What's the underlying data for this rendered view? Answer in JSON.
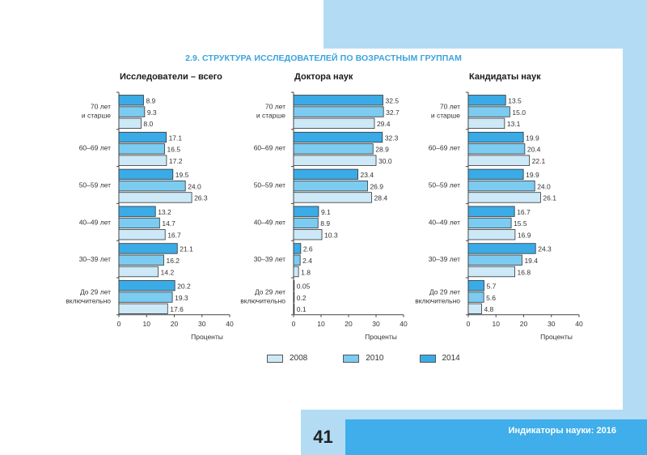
{
  "page": {
    "title": "2.9. СТРУКТУРА ИССЛЕДОВАТЕЛЕЙ ПО ВОЗРАСТНЫМ ГРУППАМ",
    "page_number": "41",
    "footer_text": "Индикаторы науки: 2016",
    "colors": {
      "title": "#3aa3de",
      "s2008": "#cde9f8",
      "s2010": "#7ccbf1",
      "s2014": "#3aabe6",
      "accent_light": "#b3dcf4",
      "accent_dark": "#40aeea"
    }
  },
  "legend": [
    {
      "name": "2008",
      "color": "#cde9f8"
    },
    {
      "name": "2010",
      "color": "#7ccbf1"
    },
    {
      "name": "2014",
      "color": "#3aabe6"
    }
  ],
  "chart_data": [
    {
      "type": "bar",
      "orientation": "horizontal",
      "title": "Исследователи – всего",
      "xlabel": "Проценты",
      "ylabel": "",
      "xlim": [
        0,
        40
      ],
      "xticks": [
        0,
        10,
        20,
        30,
        40
      ],
      "categories": [
        "70 лет\nи старше",
        "60–69 лет",
        "50–59 лет",
        "40–49 лет",
        "30–39 лет",
        "До 29 лет\nвключительно"
      ],
      "series": [
        {
          "name": "2014",
          "values": [
            8.9,
            17.1,
            19.5,
            13.2,
            21.1,
            20.2
          ],
          "labels": [
            "8.9",
            "17.1",
            "19.5",
            "13.2",
            "21.1",
            "20.2"
          ]
        },
        {
          "name": "2010",
          "values": [
            9.3,
            16.5,
            24.0,
            14.7,
            16.2,
            19.3
          ],
          "labels": [
            "9.3",
            "16.5",
            "24.0",
            "14.7",
            "16.2",
            "19.3"
          ]
        },
        {
          "name": "2008",
          "values": [
            8.0,
            17.2,
            26.3,
            16.7,
            14.2,
            17.6
          ],
          "labels": [
            "8.0",
            "17.2",
            "26.3",
            "16.7",
            "14.2",
            "17.6"
          ]
        }
      ]
    },
    {
      "type": "bar",
      "orientation": "horizontal",
      "title": "Доктора наук",
      "xlabel": "Проценты",
      "ylabel": "",
      "xlim": [
        0,
        40
      ],
      "xticks": [
        0,
        10,
        20,
        30,
        40
      ],
      "categories": [
        "70 лет\nи старше",
        "60–69 лет",
        "50–59 лет",
        "40–49 лет",
        "30–39 лет",
        "До 29 лет\nвключительно"
      ],
      "series": [
        {
          "name": "2014",
          "values": [
            32.5,
            32.3,
            23.4,
            9.1,
            2.6,
            0.05
          ],
          "labels": [
            "32.5",
            "32.3",
            "23.4",
            "9.1",
            "2.6",
            "0.05"
          ]
        },
        {
          "name": "2010",
          "values": [
            32.7,
            28.9,
            26.9,
            8.9,
            2.4,
            0.2
          ],
          "labels": [
            "32.7",
            "28.9",
            "26.9",
            "8.9",
            "2.4",
            "0.2"
          ]
        },
        {
          "name": "2008",
          "values": [
            29.4,
            30.0,
            28.4,
            10.3,
            1.8,
            0.1
          ],
          "labels": [
            "29.4",
            "30.0",
            "28.4",
            "10.3",
            "1.8",
            "0.1"
          ]
        }
      ]
    },
    {
      "type": "bar",
      "orientation": "horizontal",
      "title": "Кандидаты наук",
      "xlabel": "Проценты",
      "ylabel": "",
      "xlim": [
        0,
        40
      ],
      "xticks": [
        0,
        10,
        20,
        30,
        40
      ],
      "categories": [
        "70 лет\nи старше",
        "60–69 лет",
        "50–59 лет",
        "40–49 лет",
        "30–39 лет",
        "До 29 лет\nвключительно"
      ],
      "series": [
        {
          "name": "2014",
          "values": [
            13.5,
            19.9,
            19.9,
            16.7,
            24.3,
            5.7
          ],
          "labels": [
            "13.5",
            "19.9",
            "19.9",
            "16.7",
            "24.3",
            "5.7"
          ]
        },
        {
          "name": "2010",
          "values": [
            15.0,
            20.4,
            24.0,
            15.5,
            19.4,
            5.6
          ],
          "labels": [
            "15.0",
            "20.4",
            "24.0",
            "15.5",
            "19.4",
            "5.6"
          ]
        },
        {
          "name": "2008",
          "values": [
            13.1,
            22.1,
            26.1,
            16.9,
            16.8,
            4.8
          ],
          "labels": [
            "13.1",
            "22.1",
            "26.1",
            "16.9",
            "16.8",
            "4.8"
          ]
        }
      ]
    }
  ]
}
